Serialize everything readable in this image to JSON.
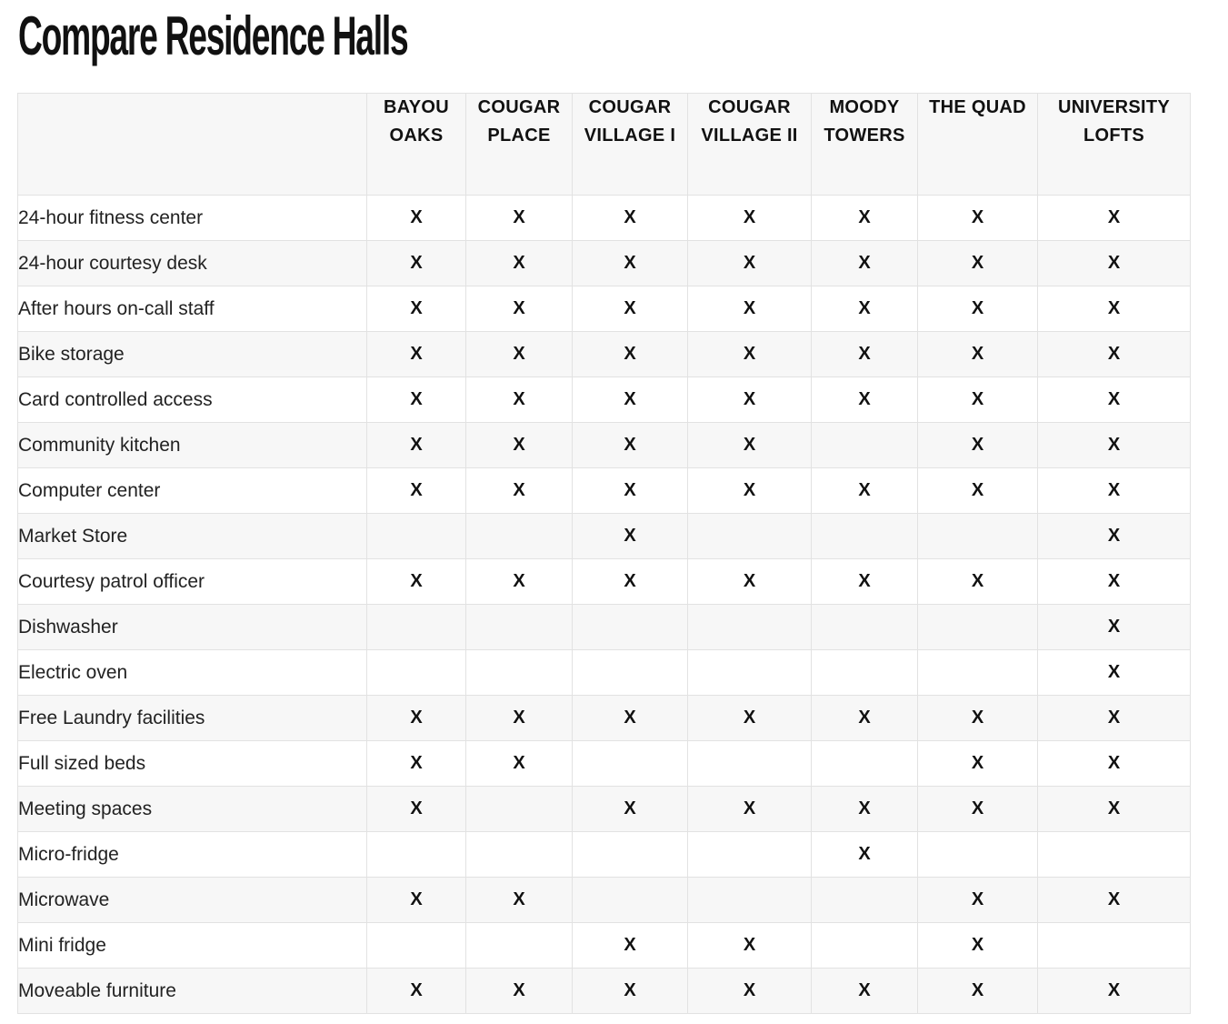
{
  "page": {
    "title": "Compare Residence Halls"
  },
  "table": {
    "columns": [
      "BAYOU OAKS",
      "COUGAR PLACE",
      "COUGAR VILLAGE I",
      "COUGAR VILLAGE II",
      "MOODY TOWERS",
      "THE QUAD",
      "UNIVERSITY LOFTS"
    ],
    "rows": [
      {
        "label": "24-hour fitness center",
        "cells": [
          "X",
          "X",
          "X",
          "X",
          "X",
          "X",
          "X"
        ]
      },
      {
        "label": "24-hour courtesy desk",
        "cells": [
          "X",
          "X",
          "X",
          "X",
          "X",
          "X",
          "X"
        ]
      },
      {
        "label": "After hours on-call staff",
        "cells": [
          "X",
          "X",
          "X",
          "X",
          "X",
          "X",
          "X"
        ]
      },
      {
        "label": "Bike storage",
        "cells": [
          "X",
          "X",
          "X",
          "X",
          "X",
          "X",
          "X"
        ]
      },
      {
        "label": "Card controlled access",
        "cells": [
          "X",
          "X",
          "X",
          "X",
          "X",
          "X",
          "X"
        ]
      },
      {
        "label": "Community kitchen",
        "cells": [
          "X",
          "X",
          "X",
          "X",
          "",
          "X",
          "X"
        ]
      },
      {
        "label": "Computer center",
        "cells": [
          "X",
          "X",
          "X",
          "X",
          "X",
          "X",
          "X"
        ]
      },
      {
        "label": "Market Store",
        "cells": [
          "",
          "",
          "X",
          "",
          "",
          "",
          "X"
        ]
      },
      {
        "label": "Courtesy patrol officer",
        "cells": [
          "X",
          "X",
          "X",
          "X",
          "X",
          "X",
          "X"
        ]
      },
      {
        "label": "Dishwasher",
        "cells": [
          "",
          "",
          "",
          "",
          "",
          "",
          "X"
        ]
      },
      {
        "label": "Electric oven",
        "cells": [
          "",
          "",
          "",
          "",
          "",
          "",
          "X"
        ]
      },
      {
        "label": "Free Laundry facilities",
        "cells": [
          "X",
          "X",
          "X",
          "X",
          "X",
          "X",
          "X"
        ]
      },
      {
        "label": "Full sized beds",
        "cells": [
          "X",
          "X",
          "",
          "",
          "",
          "X",
          "X"
        ]
      },
      {
        "label": "Meeting spaces",
        "cells": [
          "X",
          "",
          "X",
          "X",
          "X",
          "X",
          "X"
        ]
      },
      {
        "label": "Micro-fridge",
        "cells": [
          "",
          "",
          "",
          "",
          "X",
          "",
          ""
        ]
      },
      {
        "label": "Microwave",
        "cells": [
          "X",
          "X",
          "",
          "",
          "",
          "X",
          "X"
        ]
      },
      {
        "label": "Mini fridge",
        "cells": [
          "",
          "",
          "X",
          "X",
          "",
          "X",
          ""
        ]
      },
      {
        "label": "Moveable furniture",
        "cells": [
          "X",
          "X",
          "X",
          "X",
          "X",
          "X",
          "X"
        ]
      }
    ]
  }
}
